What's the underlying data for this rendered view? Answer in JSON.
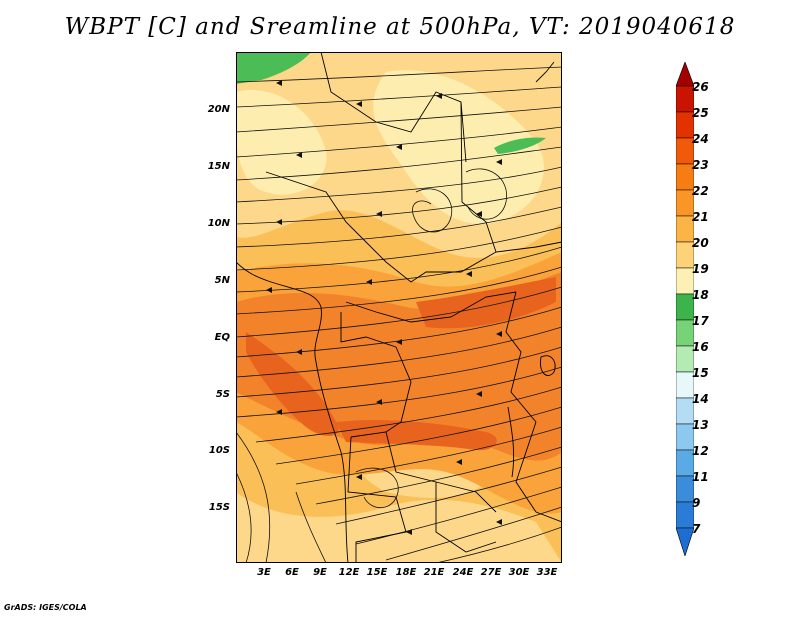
{
  "title": "WBPT [C] and Sreamline at 500hPa, VT: 2019040618",
  "credit": "GrADS: IGES/COLA",
  "lat_labels": [
    "20N",
    "15N",
    "10N",
    "5N",
    "EQ",
    "5S",
    "10S",
    "15S"
  ],
  "lon_labels": [
    "3E",
    "6E",
    "9E",
    "12E",
    "15E",
    "18E",
    "21E",
    "24E",
    "27E",
    "30E",
    "33E"
  ],
  "colorbar": {
    "labels": [
      "26",
      "25",
      "24",
      "23",
      "22",
      "21",
      "20",
      "19",
      "18",
      "17",
      "16",
      "15",
      "14",
      "13",
      "12",
      "11",
      "9",
      "7"
    ],
    "colors": [
      "#a50000",
      "#c81400",
      "#e23200",
      "#f05a0a",
      "#f57d14",
      "#fa9628",
      "#fbb446",
      "#fdd278",
      "#fdf0b4",
      "#3cb44b",
      "#78d278",
      "#b4ebb4",
      "#e6f8fa",
      "#b4dcf5",
      "#8cc8f0",
      "#5aaae6",
      "#3c8cdc",
      "#1e6ed2"
    ]
  },
  "field_colors": {
    "18-19": "#fdeeb0",
    "19-20": "#fdd88a",
    "20-21": "#fbbf58",
    "21-22": "#f9a33a",
    "22-23": "#f3832a",
    "23-24": "#e8641e",
    "17-18": "#4cbc56",
    "16-17": "#7ed47e"
  }
}
